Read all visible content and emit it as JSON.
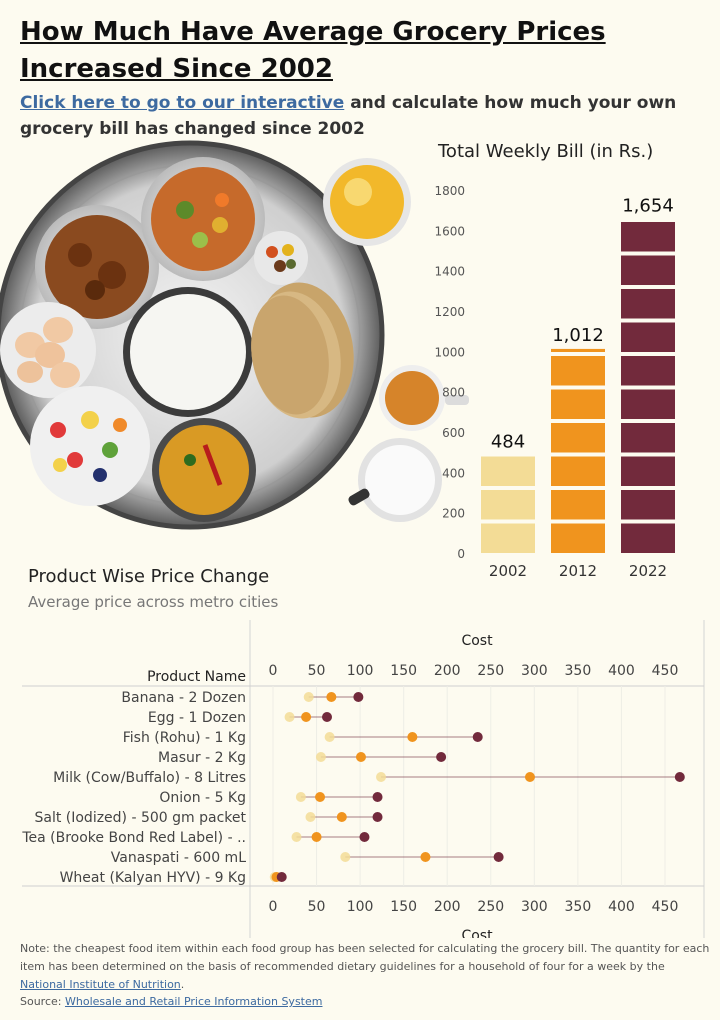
{
  "header": {
    "title": "How Much Have Average Grocery Prices Increased Since 2002",
    "link_text": "Click here to go to our interactive",
    "subtitle_rest": " and calculate how much your own grocery bill has changed since 2002"
  },
  "colors": {
    "y2002": "#f3dc96",
    "y2012": "#f0941e",
    "y2022": "#722a3c",
    "background": "#fdfbf0",
    "link": "#3d6aa0"
  },
  "chart_data": [
    {
      "type": "bar",
      "title": "Total Weekly Bill (in Rs.)",
      "categories": [
        "2002",
        "2012",
        "2022"
      ],
      "values": [
        484,
        1012,
        1654
      ],
      "value_labels": [
        "484",
        "1,012",
        "1,654"
      ],
      "ylim": [
        0,
        1800
      ],
      "yticks": [
        "0",
        "200",
        "400",
        "600",
        "800",
        "1000",
        "1200",
        "1400",
        "1600",
        "1800"
      ]
    },
    {
      "type": "scatter",
      "title": "Product Wise Price Change",
      "subtitle": "Average price across metro cities",
      "xlabel": "Cost",
      "row_header": "Product Name",
      "xlim": [
        0,
        470
      ],
      "xticks": [
        "0",
        "50",
        "100",
        "150",
        "200",
        "250",
        "300",
        "350",
        "400",
        "450"
      ],
      "categories": [
        "Banana - 2 Dozen",
        "Egg - 1 Dozen",
        "Fish (Rohu) - 1 Kg",
        "Masur - 2 Kg",
        "Milk (Cow/Buffalo) - 8 Litres",
        "Onion - 5 Kg",
        "Salt (Iodized) - 500 gm packet",
        "Tea (Brooke Bond Red Label) - ..",
        "Vanaspati - 600 mL",
        "Wheat (Kalyan HYV) - 9 Kg"
      ],
      "series": [
        {
          "name": "2002",
          "values": [
            41,
            19,
            65,
            55,
            124,
            32,
            43,
            27,
            83,
            2
          ]
        },
        {
          "name": "2012",
          "values": [
            67,
            38,
            160,
            101,
            295,
            54,
            79,
            50,
            175,
            4
          ]
        },
        {
          "name": "2022",
          "values": [
            98,
            62,
            235,
            193,
            467,
            120,
            120,
            105,
            259,
            10
          ]
        }
      ]
    }
  ],
  "footer": {
    "note_text": "Note: the cheapest food item within each food group has been selected for calculating the grocery bill. The quantity for each item has been determined on the basis of recommended dietary guidelines for a household of four for a week by the ",
    "note_link": "National Institute of Nutrition",
    "note_end": ".",
    "source_label": "Source: ",
    "source_link": "Wholesale and Retail Price Information System"
  }
}
